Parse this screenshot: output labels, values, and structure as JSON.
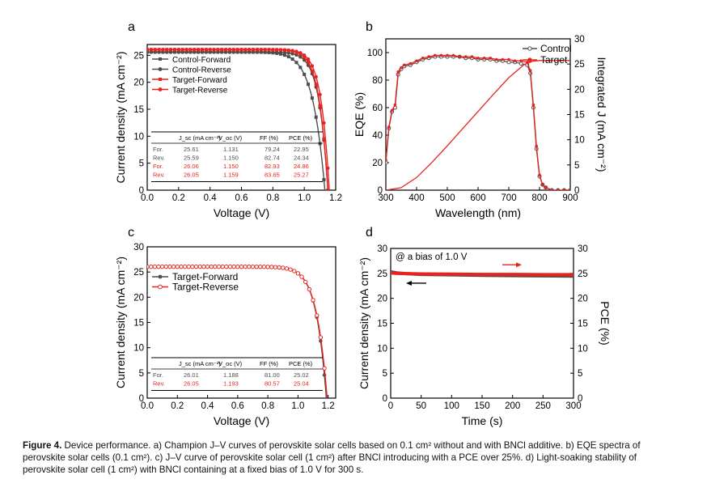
{
  "colors": {
    "gray": "#4d4d4d",
    "red": "#e8231f",
    "axis": "#000000"
  },
  "chart_data": [
    {
      "panel_letter": "a",
      "type": "line",
      "xlabel": "Voltage (V)",
      "ylabel": "Current density (mA cm⁻²)",
      "xlim": [
        0.0,
        1.2
      ],
      "ylim": [
        0,
        27
      ],
      "xticks": [
        "0.0",
        "0.2",
        "0.4",
        "0.6",
        "0.8",
        "1.0",
        "1.2"
      ],
      "yticks": [
        "0",
        "5",
        "10",
        "15",
        "20",
        "25"
      ],
      "legend": [
        "Control-Forward",
        "Control-Reverse",
        "Target-Forward",
        "Target-Reverse"
      ],
      "series": [
        {
          "name": "Control-Forward",
          "color": "gray",
          "marker": "square",
          "jsc": 25.61,
          "voc": 1.131,
          "ff": 79.24
        },
        {
          "name": "Control-Reverse",
          "color": "gray",
          "marker": "circle",
          "jsc": 25.59,
          "voc": 1.15,
          "ff": 82.74
        },
        {
          "name": "Target-Forward",
          "color": "red",
          "marker": "square",
          "jsc": 26.06,
          "voc": 1.15,
          "ff": 82.93
        },
        {
          "name": "Target-Reverse",
          "color": "red",
          "marker": "circle",
          "jsc": 26.05,
          "voc": 1.159,
          "ff": 83.65
        }
      ],
      "table": {
        "headers": [
          "J_sc (mA cm⁻²)",
          "V_oc (V)",
          "FF (%)",
          "PCE (%)"
        ],
        "rows": [
          {
            "label": "For.",
            "values": [
              "25.61",
              "1.131",
              "79.24",
              "22.95"
            ],
            "color": "gray"
          },
          {
            "label": "Rev.",
            "values": [
              "25.59",
              "1.150",
              "82.74",
              "24.34"
            ],
            "color": "gray"
          },
          {
            "label": "For.",
            "values": [
              "26.06",
              "1.150",
              "82.93",
              "24.86"
            ],
            "color": "red"
          },
          {
            "label": "Rev.",
            "values": [
              "26.05",
              "1.159",
              "83.65",
              "25.27"
            ],
            "color": "red"
          }
        ]
      }
    },
    {
      "panel_letter": "b",
      "type": "line",
      "xlabel": "Wavelength (nm)",
      "ylabel": "EQE (%)",
      "ylabel_right": "Integrated J (mA cm⁻²)",
      "xlim": [
        300,
        900
      ],
      "ylim": [
        0,
        110
      ],
      "ylim_right": [
        0,
        30
      ],
      "xticks": [
        "300",
        "400",
        "500",
        "600",
        "700",
        "800",
        "900"
      ],
      "yticks": [
        "0",
        "20",
        "40",
        "60",
        "80",
        "100"
      ],
      "yticks_right": [
        "0",
        "5",
        "10",
        "15",
        "20",
        "25",
        "30"
      ],
      "legend": [
        "Control",
        "Target"
      ],
      "series": [
        {
          "name": "Control",
          "color": "gray",
          "axis": "left",
          "x": [
            300,
            310,
            320,
            330,
            340,
            350,
            360,
            380,
            400,
            420,
            440,
            460,
            480,
            500,
            520,
            540,
            560,
            580,
            600,
            620,
            640,
            660,
            680,
            700,
            720,
            740,
            760,
            770,
            780,
            790,
            800,
            810,
            820,
            840,
            860,
            880,
            900
          ],
          "y": [
            20,
            45,
            57,
            60,
            84,
            88,
            90,
            91,
            93,
            95,
            96,
            97,
            97,
            97,
            97,
            97,
            96,
            96,
            95,
            95,
            95,
            94,
            94,
            93,
            93,
            92,
            91,
            85,
            60,
            30,
            10,
            4,
            2,
            0,
            0,
            0,
            0
          ]
        },
        {
          "name": "Target",
          "color": "red",
          "axis": "left",
          "x": [
            300,
            310,
            320,
            330,
            340,
            350,
            360,
            380,
            400,
            420,
            440,
            460,
            480,
            500,
            520,
            540,
            560,
            580,
            600,
            620,
            640,
            660,
            680,
            700,
            720,
            740,
            760,
            770,
            780,
            790,
            800,
            810,
            820,
            840,
            860,
            880,
            900
          ],
          "y": [
            22,
            46,
            58,
            62,
            86,
            89,
            91,
            92,
            94,
            96,
            97,
            98,
            98,
            98,
            98,
            97,
            97,
            97,
            96,
            96,
            96,
            95,
            95,
            95,
            94,
            94,
            93,
            87,
            62,
            32,
            11,
            4,
            2,
            0,
            0,
            0,
            0
          ]
        },
        {
          "name": "Integrated J",
          "color": "red",
          "axis": "right",
          "x": [
            300,
            350,
            400,
            450,
            500,
            550,
            600,
            650,
            700,
            750,
            780,
            800,
            850,
            900
          ],
          "y": [
            0,
            0.5,
            2.5,
            5.5,
            8.8,
            12.2,
            15.6,
            19.0,
            22.3,
            24.9,
            25.6,
            25.7,
            25.7,
            25.7
          ]
        }
      ]
    },
    {
      "panel_letter": "c",
      "type": "line",
      "xlabel": "Voltage (V)",
      "ylabel": "Current density (mA cm⁻²)",
      "xlim": [
        0.0,
        1.25
      ],
      "ylim": [
        0,
        30
      ],
      "xticks": [
        "0.0",
        "0.2",
        "0.4",
        "0.6",
        "0.8",
        "1.0",
        "1.2"
      ],
      "yticks": [
        "0",
        "5",
        "10",
        "15",
        "20",
        "25",
        "30"
      ],
      "legend": [
        "Target-Forward",
        "Target-Reverse"
      ],
      "series": [
        {
          "name": "Target-Forward",
          "color": "gray",
          "marker": "circle",
          "jsc": 26.01,
          "voc": 1.188,
          "ff": 81.0
        },
        {
          "name": "Target-Reverse",
          "color": "red",
          "marker": "circle-open",
          "jsc": 26.05,
          "voc": 1.193,
          "ff": 80.57
        }
      ],
      "table": {
        "headers": [
          "J_sc (mA cm⁻²)",
          "V_oc (V)",
          "FF (%)",
          "PCE (%)"
        ],
        "rows": [
          {
            "label": "For.",
            "values": [
              "26.01",
              "1.188",
              "81.00",
              "25.02"
            ],
            "color": "gray"
          },
          {
            "label": "Rev.",
            "values": [
              "26.05",
              "1.193",
              "80.57",
              "25.04"
            ],
            "color": "red"
          }
        ]
      }
    },
    {
      "panel_letter": "d",
      "type": "line",
      "xlabel": "Time (s)",
      "ylabel": "Current density (mA cm⁻²)",
      "ylabel_right": "PCE (%)",
      "xlim": [
        0,
        300
      ],
      "ylim": [
        0,
        30
      ],
      "ylim_right": [
        0,
        30
      ],
      "xticks": [
        "0",
        "50",
        "100",
        "150",
        "200",
        "250",
        "300"
      ],
      "yticks": [
        "0",
        "5",
        "10",
        "15",
        "20",
        "25",
        "30"
      ],
      "yticks_right": [
        "0",
        "5",
        "10",
        "15",
        "20",
        "25",
        "30"
      ],
      "annotation": "@ a bias of 1.0 V",
      "series": [
        {
          "name": "Current density",
          "color": "gray",
          "axis": "left",
          "x": [
            0,
            10,
            25,
            50,
            100,
            150,
            200,
            250,
            300
          ],
          "y": [
            25.3,
            25.1,
            24.95,
            24.8,
            24.7,
            24.6,
            24.55,
            24.5,
            24.45
          ]
        },
        {
          "name": "PCE",
          "color": "red",
          "axis": "right",
          "x": [
            0,
            10,
            25,
            50,
            100,
            150,
            200,
            250,
            300
          ],
          "y": [
            25.1,
            25.0,
            24.95,
            24.9,
            24.85,
            24.8,
            24.8,
            24.75,
            24.75
          ]
        }
      ]
    }
  ],
  "caption": {
    "bold": "Figure 4.",
    "lines": [
      " Device performance. a) Champion J–V curves of perovskite solar cells based on 0.1 cm² without and with BNCl additive. b) EQE spectra of",
      "perovskite solar cells (0.1 cm²). c) J–V curve of perovskite solar cell (1 cm²) after BNCl introducing with a PCE over 25%. d) Light-soaking stability of",
      "perovskite solar cell (1 cm²) with BNCl containing at a fixed bias of 1.0 V for 300 s."
    ]
  }
}
